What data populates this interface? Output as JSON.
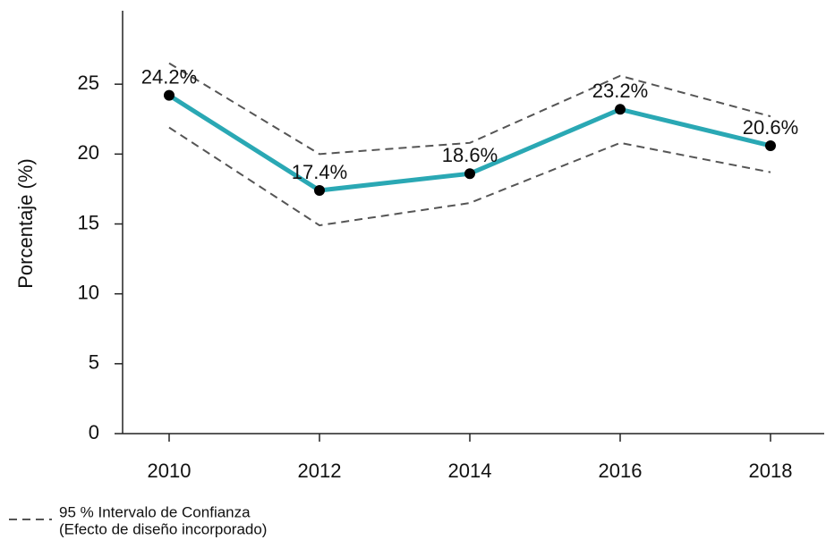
{
  "chart_data": {
    "type": "line",
    "y_label": "Porcentaje (%)",
    "categories": [
      "2010",
      "2012",
      "2014",
      "2016",
      "2018"
    ],
    "series": [
      {
        "color": "#2aa8b4",
        "values": [
          24.2,
          17.4,
          18.6,
          23.2,
          20.6
        ],
        "value_labels": [
          "24.2%",
          "17.4%",
          "18.6%",
          "23.2%",
          "20.6%"
        ]
      }
    ],
    "confidence_interval": {
      "legend": [
        "95 % Intervalo de Confianza",
        "(Efecto de diseño incorporado)"
      ],
      "color": "#555555",
      "upper": [
        26.5,
        20.0,
        20.8,
        25.6,
        22.7
      ],
      "lower": [
        21.9,
        14.9,
        16.5,
        20.8,
        18.7
      ]
    },
    "ylim": [
      0,
      30
    ],
    "yticks": [
      0,
      5,
      10,
      15,
      20,
      25
    ],
    "grid": false
  }
}
